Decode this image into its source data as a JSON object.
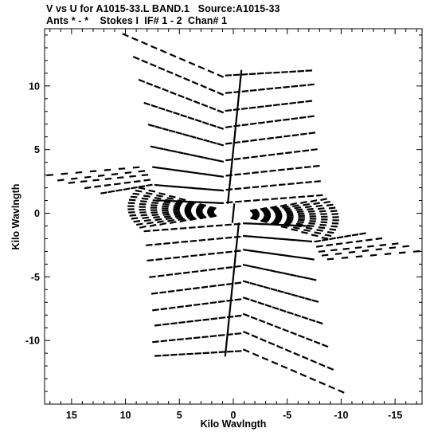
{
  "header": {
    "title_line1": "V vs U for A1015-33.L BAND.1   Source:A1015-33",
    "title_line2": "Ants * - *    Stokes I  IF# 1 - 2  Chan# 1"
  },
  "chart_data": {
    "type": "scatter",
    "title": "V vs U for A1015-33.L BAND.1   Source:A1015-33",
    "subtitle": "Ants * - *    Stokes I  IF# 1 - 2  Chan# 1",
    "xlabel": "Kilo Wavlngth",
    "ylabel": "Kilo Wavlngth",
    "xlim": [
      17.5,
      -17.5
    ],
    "ylim": [
      -15,
      14.5
    ],
    "x_reversed": true,
    "xticks": [
      15,
      10,
      5,
      0,
      -5,
      -10,
      -15
    ],
    "yticks": [
      -10,
      -5,
      0,
      5,
      10
    ],
    "marker_color": "#000000",
    "background": "#ffffff",
    "grid": false,
    "legend": "none",
    "tracks": [
      {
        "kind": "nearly horizontal arcs spanning the upper half (v from 2 to 14), each bending near u = 1",
        "approx_count": 10
      },
      {
        "kind": "nearly horizontal arcs spanning the lower half (v from -2 to -14), each bending near u = -1",
        "approx_count": 10
      },
      {
        "kind": "long diagonal track",
        "u_range": [
          17,
          -17
        ],
        "v_range": [
          3,
          -3
        ]
      },
      {
        "kind": "near-vertical spine",
        "u_range": [
          1.5,
          -1.5
        ],
        "v_range": [
          11,
          -11
        ]
      }
    ]
  }
}
